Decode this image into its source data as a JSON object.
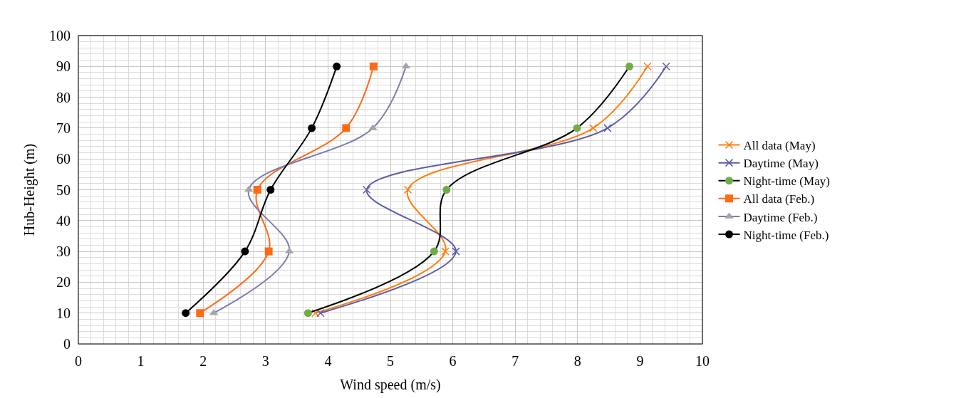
{
  "chart_data": {
    "type": "line",
    "xlabel": "Wind speed (m/s)",
    "ylabel": "Hub-Height (m)",
    "xlim": [
      0,
      10
    ],
    "xticks": [
      0,
      1,
      2,
      3,
      4,
      5,
      6,
      7,
      8,
      9,
      10
    ],
    "ylim": [
      0,
      100
    ],
    "yticks": [
      0,
      10,
      20,
      30,
      40,
      50,
      60,
      70,
      80,
      90,
      100
    ],
    "grid": true,
    "legend": "right",
    "line_style": "solid",
    "series": [
      {
        "name": "All data (May)",
        "color": "#ff7f0e",
        "marker": "cross",
        "x": [
          3.8,
          5.88,
          5.28,
          8.25,
          9.12
        ],
        "values": [
          10,
          30,
          50,
          70,
          90
        ]
      },
      {
        "name": "Daytime (May)",
        "color": "#5b5ea6",
        "marker": "cross",
        "x": [
          3.88,
          6.05,
          4.62,
          8.48,
          9.42
        ],
        "values": [
          10,
          30,
          50,
          70,
          90
        ]
      },
      {
        "name": "Night-time (May)",
        "color": "#000000",
        "marker": "circle",
        "colors": [
          "#70ad47",
          "#70ad47",
          "#70ad47",
          "#70ad47",
          "#70ad47"
        ],
        "x": [
          3.68,
          5.7,
          5.9,
          7.99,
          8.83
        ],
        "values": [
          10,
          30,
          50,
          70,
          90
        ]
      },
      {
        "name": "All data (Feb.)",
        "color": "#ff6a13",
        "marker": "square",
        "x": [
          1.95,
          3.05,
          2.87,
          4.29,
          4.73
        ],
        "values": [
          10,
          30,
          50,
          70,
          90
        ]
      },
      {
        "name": "Daytime (Feb.)",
        "color": "#7b7bb0",
        "marker": "triangle",
        "colors": [
          "#a5a5a5",
          "#a5a5a5",
          "#a5a5a5",
          "#a5a5a5",
          "#a5a5a5"
        ],
        "x": [
          2.17,
          3.38,
          2.73,
          4.72,
          5.25
        ],
        "values": [
          10,
          30,
          50,
          70,
          90
        ]
      },
      {
        "name": "Night-time (Feb.)",
        "color": "#000000",
        "marker": "circle",
        "x": [
          1.72,
          2.67,
          3.08,
          3.74,
          4.14
        ],
        "values": [
          10,
          30,
          50,
          70,
          90
        ]
      }
    ]
  }
}
